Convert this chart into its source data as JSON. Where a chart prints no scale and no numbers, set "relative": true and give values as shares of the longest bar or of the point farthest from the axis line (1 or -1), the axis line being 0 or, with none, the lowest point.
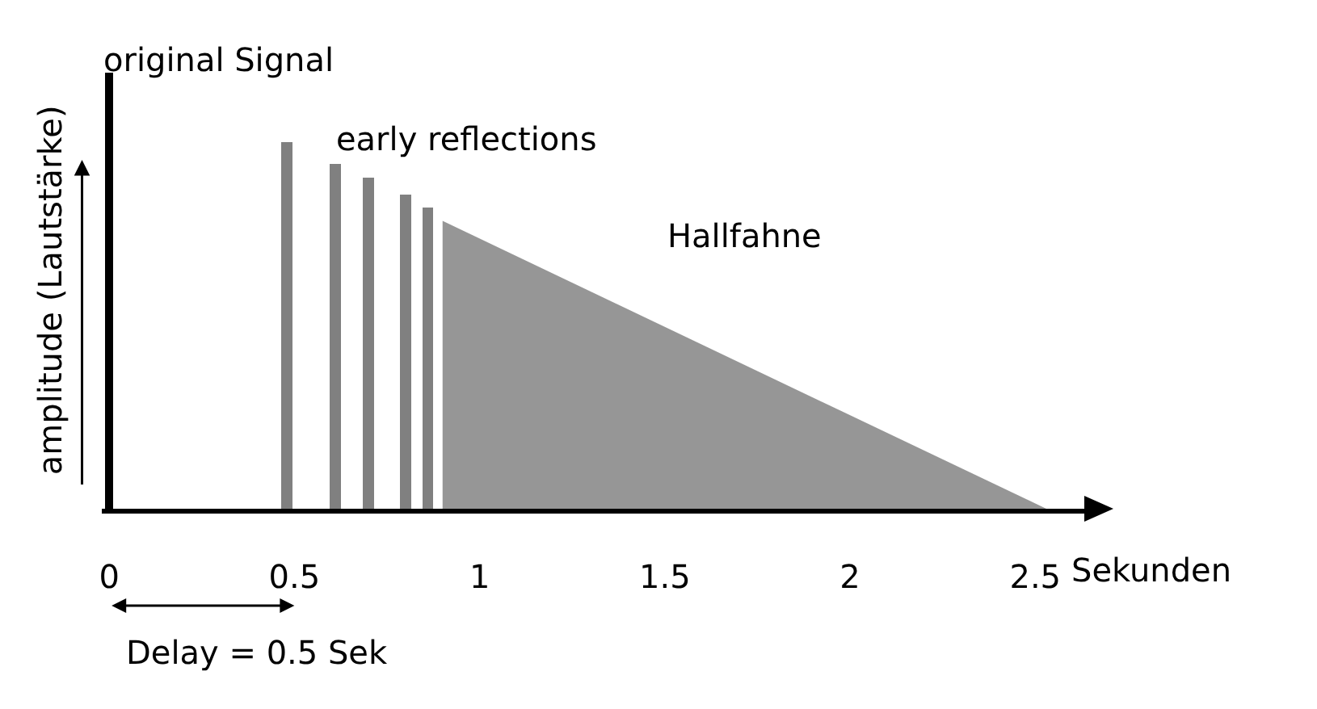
{
  "chart_data": {
    "type": "bar",
    "relative": true,
    "xlabel": "Sekunden",
    "ylabel": "amplitude (Lautstärke)",
    "xlim": [
      -0.02,
      2.65
    ],
    "xticks": [
      0,
      0.5,
      1,
      1.5,
      2,
      2.5
    ],
    "series": [
      {
        "name": "original Signal",
        "color": "#000000",
        "x": [
          0
        ],
        "values": [
          1
        ]
      },
      {
        "name": "early reflections",
        "color": "#808080",
        "x": [
          0.48,
          0.61,
          0.7,
          0.8,
          0.86
        ],
        "values": [
          0.84,
          0.79,
          0.76,
          0.72,
          0.69
        ]
      },
      {
        "name": "Hallfahne",
        "type": "area",
        "color": "#969696",
        "x": [
          0.9,
          2.53
        ],
        "values": [
          0.66,
          0
        ]
      }
    ],
    "annotations": [
      "Delay = 0.5 Sek"
    ],
    "grid": false,
    "legend": false
  }
}
